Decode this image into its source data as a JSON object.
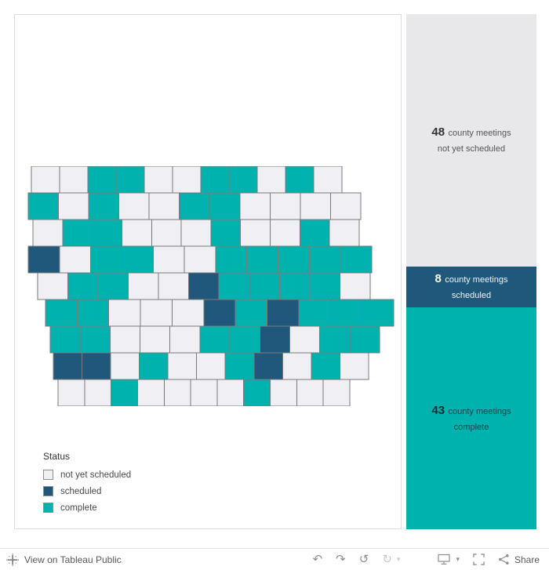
{
  "colors": {
    "not_yet_scheduled": "#f0eff4",
    "scheduled": "#20587c",
    "complete": "#00b2ad",
    "county_border": "#7a7a7a",
    "panel_gray_bg": "#e8e8ea"
  },
  "chart_data": {
    "type": "heatmap",
    "subtype": "choropleth",
    "region": "Iowa counties",
    "legend_title": "Status",
    "legend_position": "bottom-left",
    "categories": [
      "not yet scheduled",
      "scheduled",
      "complete"
    ],
    "values": [
      48,
      8,
      43
    ],
    "palette": [
      "#f0eff4",
      "#20587c",
      "#00b2ad"
    ]
  },
  "map": {
    "status_codes": {
      "n": "not yet scheduled",
      "s": "scheduled",
      "c": "complete"
    },
    "rows": [
      [
        "n",
        "n",
        "c",
        "c",
        "n",
        "n",
        "c",
        "c",
        "n",
        "c",
        "n"
      ],
      [
        "c",
        "n",
        "c",
        "n",
        "n",
        "c",
        "c",
        "n",
        "n",
        "n",
        "n"
      ],
      [
        "n",
        "c",
        "c",
        "n",
        "n",
        "n",
        "c",
        "n",
        "n",
        "c",
        "n"
      ],
      [
        "s",
        "n",
        "c",
        "c",
        "n",
        "n",
        "c",
        "c",
        "c",
        "c",
        "c"
      ],
      [
        "n",
        "c",
        "c",
        "n",
        "n",
        "s",
        "c",
        "c",
        "c",
        "c",
        "n"
      ],
      [
        "c",
        "c",
        "n",
        "n",
        "n",
        "s",
        "c",
        "s",
        "c",
        "c",
        "c"
      ],
      [
        "c",
        "c",
        "n",
        "n",
        "n",
        "c",
        "c",
        "s",
        "n",
        "c",
        "c"
      ],
      [
        "s",
        "s",
        "n",
        "c",
        "n",
        "n",
        "c",
        "s",
        "n",
        "c",
        "n"
      ],
      [
        "n",
        "n",
        "c",
        "n",
        "n",
        "n",
        "n",
        "c",
        "n",
        "n",
        "n"
      ]
    ]
  },
  "legend": {
    "title": "Status",
    "items": [
      {
        "status": "n",
        "label": "not yet scheduled"
      },
      {
        "status": "s",
        "label": "scheduled"
      },
      {
        "status": "c",
        "label": "complete"
      }
    ]
  },
  "summary_panels": [
    {
      "count": "48",
      "label": "county meetings",
      "sublabel": "not yet scheduled"
    },
    {
      "count": "8",
      "label": "county meetings",
      "sublabel": "scheduled"
    },
    {
      "count": "43",
      "label": "county meetings",
      "sublabel": "complete"
    }
  ],
  "toolbar": {
    "view_on_label": "View on Tableau Public",
    "share_label": "Share",
    "icons": {
      "undo": "↶",
      "redo": "↷",
      "revert": "↺",
      "refresh": "↻",
      "dropdown_caret": "▾"
    }
  }
}
